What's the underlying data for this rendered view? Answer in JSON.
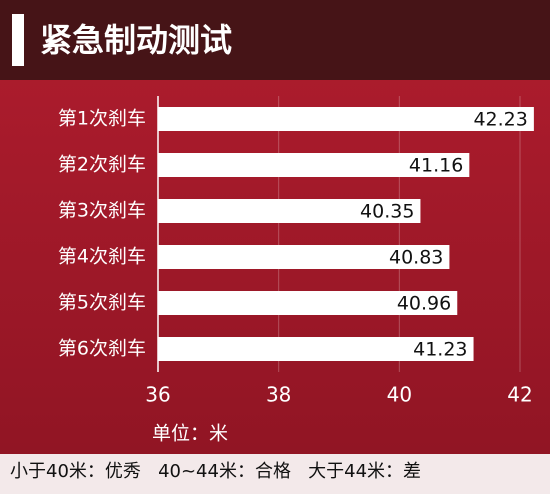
{
  "chart_data": {
    "type": "barh",
    "title": "紧急制动测试",
    "categories": [
      "第1次刹车",
      "第2次刹车",
      "第3次刹车",
      "第4次刹车",
      "第5次刹车",
      "第6次刹车"
    ],
    "values": [
      42.23,
      41.16,
      40.35,
      40.83,
      40.96,
      41.23
    ],
    "color": "#ffffff",
    "xlim": [
      36,
      42
    ],
    "xticks": [
      36,
      38,
      40,
      42
    ],
    "grid": true,
    "x_label": "单位：米",
    "footnote": "小于40米：优秀   40~44米：合格   大于44米：差"
  }
}
